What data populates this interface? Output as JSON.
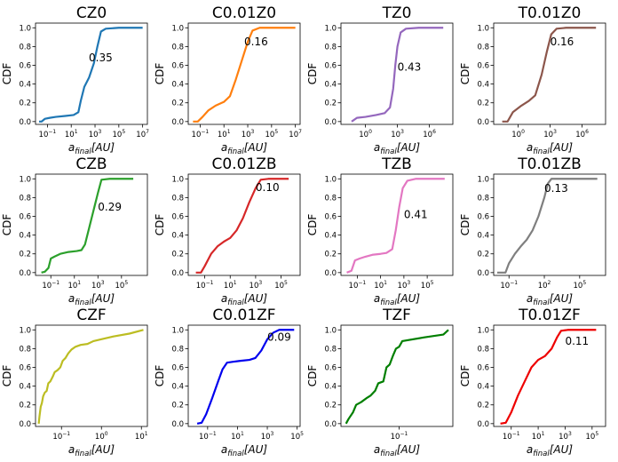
{
  "figure": {
    "ylabel": "CDF",
    "xlabel_base": "a",
    "xlabel_sub": "final",
    "xlabel_unit": "[AU]",
    "y_ticks": [
      "0.0",
      "0.2",
      "0.4",
      "0.6",
      "0.8",
      "1.0"
    ]
  },
  "chart_data": [
    {
      "type": "line",
      "title": "CZ0",
      "color": "#1f77b4",
      "annotation": "0.35",
      "annotation_pos": [
        300,
        0.68
      ],
      "x_scale": "log10",
      "xlim": [
        -2,
        7.4
      ],
      "ylim": [
        -0.03,
        1.05
      ],
      "x_ticks": [
        {
          "exp": "-1"
        },
        {
          "exp": "1"
        },
        {
          "exp": "3"
        },
        {
          "exp": "5"
        },
        {
          "exp": "7"
        }
      ],
      "points": [
        [
          -1.7,
          0.0
        ],
        [
          -1.5,
          0.0
        ],
        [
          -1.2,
          0.03
        ],
        [
          -0.8,
          0.04
        ],
        [
          -0.3,
          0.05
        ],
        [
          0.5,
          0.06
        ],
        [
          1.2,
          0.07
        ],
        [
          1.6,
          0.1
        ],
        [
          1.8,
          0.22
        ],
        [
          2.1,
          0.37
        ],
        [
          2.5,
          0.47
        ],
        [
          2.9,
          0.62
        ],
        [
          3.2,
          0.8
        ],
        [
          3.5,
          0.96
        ],
        [
          3.9,
          0.99
        ],
        [
          5,
          1.0
        ],
        [
          7,
          1.0
        ]
      ]
    },
    {
      "type": "line",
      "title": "C0.01Z0",
      "color": "#ff7f0e",
      "annotation": "0.16",
      "annotation_pos": [
        500,
        0.85
      ],
      "x_scale": "log10",
      "xlim": [
        -2,
        7.4
      ],
      "ylim": [
        -0.03,
        1.05
      ],
      "x_ticks": [
        {
          "exp": "-1"
        },
        {
          "exp": "1"
        },
        {
          "exp": "3"
        },
        {
          "exp": "5"
        },
        {
          "exp": "7"
        }
      ],
      "points": [
        [
          -1.6,
          0.0
        ],
        [
          -1.2,
          0.0
        ],
        [
          -0.8,
          0.05
        ],
        [
          -0.3,
          0.12
        ],
        [
          0.3,
          0.17
        ],
        [
          1.0,
          0.21
        ],
        [
          1.5,
          0.27
        ],
        [
          2.0,
          0.45
        ],
        [
          2.5,
          0.65
        ],
        [
          3.0,
          0.85
        ],
        [
          3.4,
          0.97
        ],
        [
          4,
          1.0
        ],
        [
          7,
          1.0
        ]
      ]
    },
    {
      "type": "line",
      "title": "TZ0",
      "color": "#9467bd",
      "annotation": "0.43",
      "annotation_pos": [
        1000,
        0.58
      ],
      "x_scale": "log10",
      "xlim": [
        -2.3,
        8.2
      ],
      "ylim": [
        -0.03,
        1.05
      ],
      "x_ticks": [
        {
          "exp": "0"
        },
        {
          "exp": "3"
        },
        {
          "exp": "6"
        }
      ],
      "points": [
        [
          -1.3,
          0.0
        ],
        [
          -0.8,
          0.04
        ],
        [
          0,
          0.05
        ],
        [
          1,
          0.07
        ],
        [
          1.8,
          0.09
        ],
        [
          2.3,
          0.15
        ],
        [
          2.6,
          0.35
        ],
        [
          2.8,
          0.6
        ],
        [
          3.0,
          0.8
        ],
        [
          3.3,
          0.95
        ],
        [
          3.8,
          0.99
        ],
        [
          5,
          1.0
        ],
        [
          7.3,
          1.0
        ]
      ]
    },
    {
      "type": "line",
      "title": "T0.01Z0",
      "color": "#8c564b",
      "annotation": "0.16",
      "annotation_pos": [
        1000,
        0.85
      ],
      "x_scale": "log10",
      "xlim": [
        -2.3,
        8.2
      ],
      "ylim": [
        -0.03,
        1.05
      ],
      "x_ticks": [
        {
          "exp": "0"
        },
        {
          "exp": "3"
        },
        {
          "exp": "6"
        }
      ],
      "points": [
        [
          -1.5,
          0.0
        ],
        [
          -1.0,
          0.0
        ],
        [
          -0.5,
          0.1
        ],
        [
          0.3,
          0.17
        ],
        [
          1.0,
          0.22
        ],
        [
          1.6,
          0.28
        ],
        [
          2.2,
          0.5
        ],
        [
          2.7,
          0.75
        ],
        [
          3.1,
          0.93
        ],
        [
          3.6,
          0.99
        ],
        [
          4.5,
          1.0
        ],
        [
          7.3,
          1.0
        ]
      ]
    },
    {
      "type": "line",
      "title": "CZB",
      "color": "#2ca02c",
      "annotation": "0.29",
      "annotation_pos": [
        1000,
        0.7
      ],
      "x_scale": "log10",
      "xlim": [
        -2.3,
        7.2
      ],
      "ylim": [
        -0.03,
        1.05
      ],
      "x_ticks": [
        {
          "exp": "-1"
        },
        {
          "exp": "1"
        },
        {
          "exp": "3"
        },
        {
          "exp": "5"
        }
      ],
      "points": [
        [
          -1.8,
          0.0
        ],
        [
          -1.5,
          0.01
        ],
        [
          -1.2,
          0.05
        ],
        [
          -1.0,
          0.15
        ],
        [
          -0.7,
          0.17
        ],
        [
          -0.2,
          0.2
        ],
        [
          0.5,
          0.22
        ],
        [
          1.2,
          0.23
        ],
        [
          1.6,
          0.24
        ],
        [
          1.9,
          0.3
        ],
        [
          2.3,
          0.5
        ],
        [
          2.7,
          0.7
        ],
        [
          3.0,
          0.85
        ],
        [
          3.3,
          0.99
        ],
        [
          4,
          1.0
        ],
        [
          6,
          1.0
        ]
      ]
    },
    {
      "type": "line",
      "title": "C0.01ZB",
      "color": "#d62728",
      "annotation": "0.10",
      "annotation_pos": [
        1000,
        0.91
      ],
      "x_scale": "log10",
      "xlim": [
        -2.3,
        6.5
      ],
      "ylim": [
        -0.03,
        1.05
      ],
      "x_ticks": [
        {
          "exp": "-1"
        },
        {
          "exp": "1"
        },
        {
          "exp": "3"
        },
        {
          "exp": "5"
        }
      ],
      "points": [
        [
          -1.7,
          0.0
        ],
        [
          -1.3,
          0.0
        ],
        [
          -1.0,
          0.07
        ],
        [
          -0.5,
          0.2
        ],
        [
          0,
          0.28
        ],
        [
          0.5,
          0.33
        ],
        [
          1.0,
          0.37
        ],
        [
          1.5,
          0.45
        ],
        [
          2.0,
          0.58
        ],
        [
          2.5,
          0.75
        ],
        [
          3.0,
          0.9
        ],
        [
          3.4,
          0.99
        ],
        [
          4,
          1.0
        ],
        [
          5.6,
          1.0
        ]
      ]
    },
    {
      "type": "line",
      "title": "TZB",
      "color": "#e377c2",
      "annotation": "0.41",
      "annotation_pos": [
        1000,
        0.62
      ],
      "x_scale": "log10",
      "xlim": [
        -2.4,
        7.2
      ],
      "ylim": [
        -0.03,
        1.05
      ],
      "x_ticks": [
        {
          "exp": "-1"
        },
        {
          "exp": "1"
        },
        {
          "exp": "3"
        },
        {
          "exp": "5"
        }
      ],
      "points": [
        [
          -1.9,
          0.0
        ],
        [
          -1.5,
          0.02
        ],
        [
          -1.2,
          0.13
        ],
        [
          -0.8,
          0.15
        ],
        [
          -0.3,
          0.17
        ],
        [
          0.3,
          0.19
        ],
        [
          1.0,
          0.2
        ],
        [
          1.5,
          0.21
        ],
        [
          2.0,
          0.25
        ],
        [
          2.3,
          0.45
        ],
        [
          2.6,
          0.7
        ],
        [
          2.9,
          0.9
        ],
        [
          3.3,
          0.98
        ],
        [
          4,
          1.0
        ],
        [
          6.5,
          1.0
        ]
      ]
    },
    {
      "type": "line",
      "title": "T0.01ZB",
      "color": "#7f7f7f",
      "annotation": "0.13",
      "annotation_pos": [
        100,
        0.9
      ],
      "x_scale": "log10",
      "xlim": [
        -2.3,
        7.2
      ],
      "ylim": [
        -0.03,
        1.05
      ],
      "x_ticks": [
        {
          "exp": "-1"
        },
        {
          "exp": "2"
        },
        {
          "exp": "5"
        }
      ],
      "points": [
        [
          -2,
          0.0
        ],
        [
          -1.3,
          0.0
        ],
        [
          -1.0,
          0.1
        ],
        [
          -0.5,
          0.2
        ],
        [
          0,
          0.28
        ],
        [
          0.5,
          0.35
        ],
        [
          1.0,
          0.45
        ],
        [
          1.5,
          0.6
        ],
        [
          2.0,
          0.8
        ],
        [
          2.3,
          0.95
        ],
        [
          2.6,
          1.0
        ],
        [
          4,
          1.0
        ],
        [
          6.5,
          1.0
        ]
      ]
    },
    {
      "type": "line",
      "title": "CZF",
      "color": "#bcbd22",
      "annotation": "",
      "x_scale": "log10",
      "xlim": [
        -1.65,
        1.15
      ],
      "ylim": [
        -0.03,
        1.05
      ],
      "x_ticks": [
        {
          "exp": "-1"
        },
        {
          "exp": "0"
        },
        {
          "exp": "1"
        }
      ],
      "points": [
        [
          -1.57,
          0.0
        ],
        [
          -1.55,
          0.08
        ],
        [
          -1.52,
          0.18
        ],
        [
          -1.49,
          0.22
        ],
        [
          -1.46,
          0.29
        ],
        [
          -1.42,
          0.33
        ],
        [
          -1.37,
          0.35
        ],
        [
          -1.33,
          0.43
        ],
        [
          -1.28,
          0.45
        ],
        [
          -1.22,
          0.5
        ],
        [
          -1.17,
          0.55
        ],
        [
          -1.1,
          0.57
        ],
        [
          -1.03,
          0.6
        ],
        [
          -0.97,
          0.67
        ],
        [
          -0.9,
          0.7
        ],
        [
          -0.83,
          0.75
        ],
        [
          -0.75,
          0.79
        ],
        [
          -0.65,
          0.82
        ],
        [
          -0.52,
          0.84
        ],
        [
          -0.35,
          0.85
        ],
        [
          -0.2,
          0.88
        ],
        [
          0,
          0.9
        ],
        [
          0.3,
          0.93
        ],
        [
          0.7,
          0.96
        ],
        [
          1.05,
          1.0
        ]
      ]
    },
    {
      "type": "line",
      "title": "C0.01ZF",
      "color": "#0000ee",
      "annotation": "0.09",
      "annotation_pos": [
        1000,
        0.92
      ],
      "x_scale": "log10",
      "xlim": [
        -2.3,
        5.2
      ],
      "ylim": [
        -0.03,
        1.05
      ],
      "x_ticks": [
        {
          "exp": "-1"
        },
        {
          "exp": "1"
        },
        {
          "exp": "3"
        },
        {
          "exp": "5"
        }
      ],
      "points": [
        [
          -1.7,
          0.0
        ],
        [
          -1.4,
          0.01
        ],
        [
          -1.1,
          0.1
        ],
        [
          -0.7,
          0.27
        ],
        [
          -0.3,
          0.45
        ],
        [
          0,
          0.58
        ],
        [
          0.3,
          0.65
        ],
        [
          0.7,
          0.66
        ],
        [
          1.2,
          0.67
        ],
        [
          1.8,
          0.68
        ],
        [
          2.2,
          0.7
        ],
        [
          2.6,
          0.78
        ],
        [
          3.0,
          0.9
        ],
        [
          3.4,
          0.97
        ],
        [
          3.8,
          1.0
        ],
        [
          4.8,
          1.0
        ]
      ]
    },
    {
      "type": "line",
      "title": "TZF",
      "color": "#007f00",
      "annotation": "",
      "x_scale": "log10",
      "xlim": [
        -1.92,
        -0.15
      ],
      "ylim": [
        -0.03,
        1.05
      ],
      "x_ticks": [
        {
          "exp": "-1"
        }
      ],
      "points": [
        [
          -1.84,
          0.0
        ],
        [
          -1.8,
          0.05
        ],
        [
          -1.73,
          0.12
        ],
        [
          -1.68,
          0.2
        ],
        [
          -1.6,
          0.23
        ],
        [
          -1.52,
          0.27
        ],
        [
          -1.45,
          0.3
        ],
        [
          -1.38,
          0.35
        ],
        [
          -1.33,
          0.43
        ],
        [
          -1.25,
          0.45
        ],
        [
          -1.2,
          0.6
        ],
        [
          -1.15,
          0.63
        ],
        [
          -1.1,
          0.72
        ],
        [
          -1.05,
          0.8
        ],
        [
          -1.0,
          0.82
        ],
        [
          -0.95,
          0.88
        ],
        [
          -0.6,
          0.92
        ],
        [
          -0.3,
          0.95
        ],
        [
          -0.22,
          1.0
        ]
      ]
    },
    {
      "type": "line",
      "title": "T0.01ZF",
      "color": "#ee0000",
      "annotation": "0.11",
      "annotation_pos": [
        1000,
        0.88
      ],
      "x_scale": "log10",
      "xlim": [
        -2.3,
        6.0
      ],
      "ylim": [
        -0.03,
        1.05
      ],
      "x_ticks": [
        {
          "exp": "-1"
        },
        {
          "exp": "1"
        },
        {
          "exp": "3"
        },
        {
          "exp": "5"
        }
      ],
      "points": [
        [
          -1.8,
          0.0
        ],
        [
          -1.4,
          0.01
        ],
        [
          -1.0,
          0.12
        ],
        [
          -0.5,
          0.3
        ],
        [
          0,
          0.45
        ],
        [
          0.5,
          0.6
        ],
        [
          1.0,
          0.68
        ],
        [
          1.5,
          0.72
        ],
        [
          2.0,
          0.8
        ],
        [
          2.4,
          0.92
        ],
        [
          2.7,
          0.99
        ],
        [
          3.2,
          1.0
        ],
        [
          5.3,
          1.0
        ]
      ]
    }
  ]
}
